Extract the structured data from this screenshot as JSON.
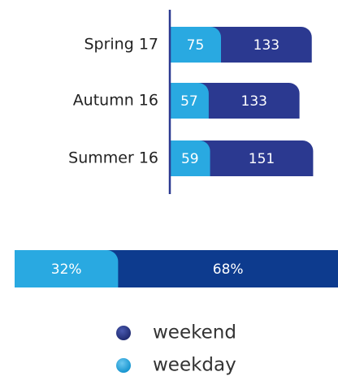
{
  "chart_data": [
    {
      "type": "stacked-hbar",
      "categories": [
        "Spring 17",
        "Autumn 16",
        "Summer 16"
      ],
      "series": [
        {
          "name": "weekday",
          "color": "#29a9e1",
          "values": [
            75,
            57,
            59
          ]
        },
        {
          "name": "weekend",
          "color": "#2b3990",
          "values": [
            133,
            133,
            151
          ]
        }
      ]
    },
    {
      "type": "share-bar",
      "values": [
        32,
        68
      ],
      "value_labels": [
        "32%",
        "68%"
      ],
      "colors": [
        "#29a9e1",
        "#0d3b8e"
      ]
    }
  ]
}
